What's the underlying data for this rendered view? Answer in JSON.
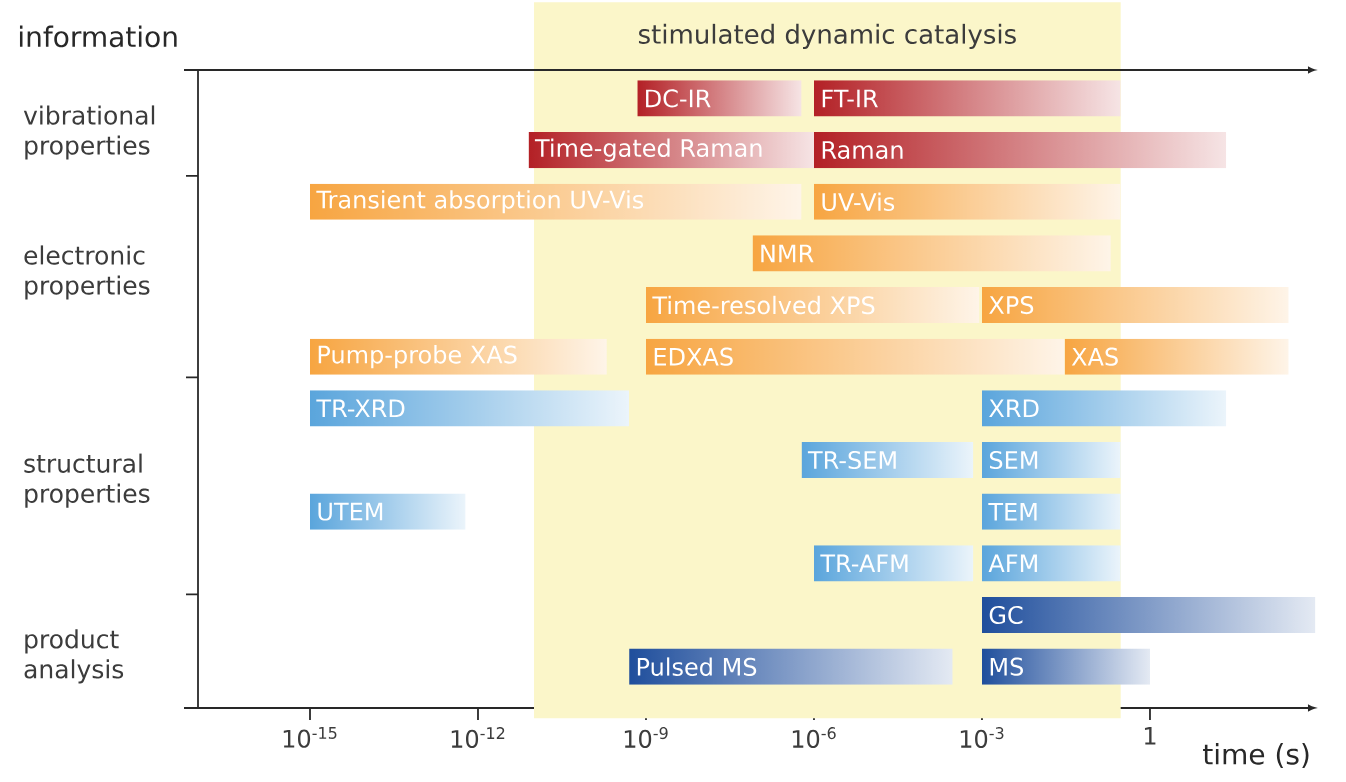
{
  "chart_data": {
    "type": "bar",
    "orientation": "horizontal",
    "log": "x",
    "ylabel": "information",
    "xlabel": "time (s)",
    "categories": [
      null,
      null,
      null,
      null,
      null,
      null,
      null,
      null,
      null,
      null,
      null,
      null
    ],
    "xlim": [
      1e-17,
      1000
    ],
    "xticks": [
      {
        "value": 1e-15,
        "label": "10$^{-15}$"
      },
      {
        "value": 1e-12,
        "label": "10$^{-12}$"
      },
      {
        "value": 1e-09,
        "label": "10$^{-9}$"
      },
      {
        "value": 1e-06,
        "label": "10$^{-6}$"
      },
      {
        "value": 0.001,
        "label": "10$^{-3}$"
      },
      1
    ],
    "bands": [
      {
        "axis": "x",
        "from": 1e-11,
        "to": 0.3,
        "label": "stimulated dynamic catalysis",
        "color": "#fbf6c9"
      }
    ],
    "annotations": [
      "vibrational properties",
      "electronic properties",
      "structural properties",
      "product analysis"
    ],
    "series": [
      {
        "base": [
          7e-10,
          8e-12,
          1e-15,
          8e-08,
          1e-09,
          1e-15,
          1e-15,
          6e-07,
          1e-15,
          1e-06,
          0.001,
          5e-10
        ],
        "values": [
          6e-07,
          1e-06,
          6e-07,
          0.2,
          0.0009,
          2e-10,
          5e-10,
          0.0007,
          6e-13,
          0.0007,
          900,
          0.0003
        ],
        "colors": [
          "#b32025",
          "#b32025",
          "#f7a541",
          "#f7a541",
          "#f7a541",
          "#f7a541",
          "#5aa5dc",
          "#5aa5dc",
          "#5aa5dc",
          "#5aa5dc",
          "#1f4e9c",
          "#1f4e9c"
        ],
        "value_labels": [
          "DC-IR",
          "Time-gated Raman",
          "Transient absorption UV-Vis",
          "NMR",
          "Time-resolved XPS",
          "Pump-probe XAS",
          "TR-XRD",
          "TR-SEM",
          "UTEM",
          "TR-AFM",
          "GC",
          "Pulsed MS"
        ]
      },
      {
        "base": [
          1e-06,
          1e-06,
          1e-06,
          null,
          0.001,
          1e-09,
          0.001,
          0.001,
          0.001,
          0.001,
          null,
          0.001
        ],
        "values": [
          0.3,
          23,
          0.3,
          null,
          300,
          0.03,
          23,
          0.3,
          0.3,
          0.3,
          null,
          1
        ],
        "colors": [
          "#b32025",
          "#b32025",
          "#f7a541",
          null,
          "#f7a541",
          "#f7a541",
          "#5aa5dc",
          "#5aa5dc",
          "#5aa5dc",
          "#5aa5dc",
          null,
          "#1f4e9c"
        ],
        "value_labels": [
          "FT-IR",
          "Raman",
          "UV-Vis",
          null,
          "XPS",
          "EDXAS",
          "XRD",
          "SEM",
          "TEM",
          "AFM",
          null,
          "MS"
        ]
      },
      {
        "base": [
          null,
          null,
          null,
          null,
          null,
          0.03,
          null,
          null,
          null,
          null,
          null,
          null
        ],
        "values": [
          null,
          null,
          null,
          null,
          null,
          300,
          null,
          null,
          null,
          null,
          null,
          null
        ],
        "colors": [
          null,
          null,
          null,
          null,
          null,
          "#f7a541",
          null,
          null,
          null,
          null,
          null,
          null
        ],
        "value_labels": [
          null,
          null,
          null,
          null,
          null,
          "XAS",
          null,
          null,
          null,
          null,
          null,
          null
        ]
      }
    ]
  }
}
